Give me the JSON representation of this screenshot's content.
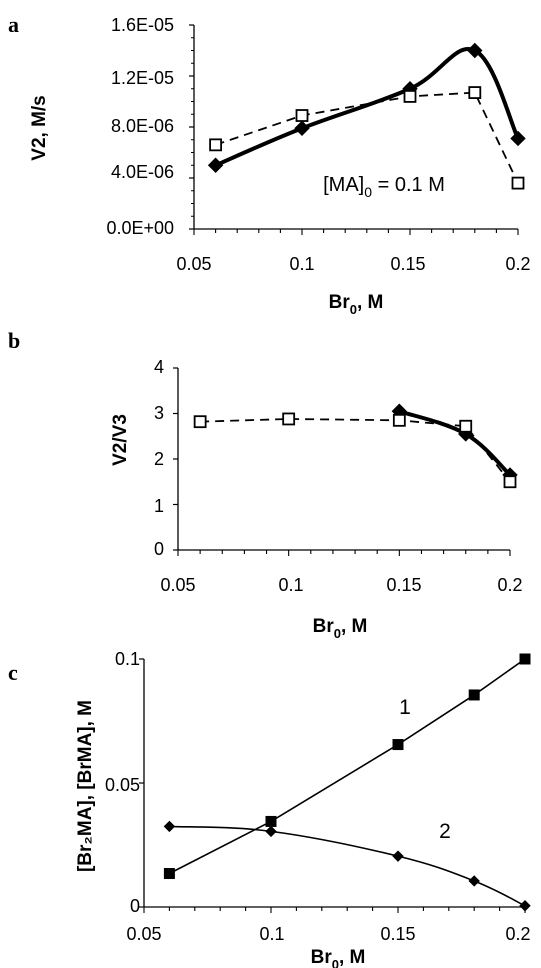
{
  "figure": {
    "panels": [
      {
        "letter": "a",
        "ylabel": "V2, M/s",
        "xlabel_main": "Br",
        "xlabel_sub": "0",
        "xlabel_tail": ", M",
        "annotation_main": "[MA]",
        "annotation_sub": "0",
        "annotation_tail": " = 0.1 M",
        "yticks": [
          "0.0E+00",
          "4.0E-06",
          "8.0E-06",
          "1.2E-05",
          "1.6E-05"
        ],
        "xticks": [
          "0.05",
          "0.1",
          "0.15",
          "0.2"
        ]
      },
      {
        "letter": "b",
        "ylabel": "V2/V3",
        "xlabel_main": "Br",
        "xlabel_sub": "0",
        "xlabel_tail": ", M",
        "yticks": [
          "0",
          "1",
          "2",
          "3",
          "4"
        ],
        "xticks": [
          "0.05",
          "0.1",
          "0.15",
          "0.2"
        ]
      },
      {
        "letter": "c",
        "ylabel": "[Br₂MA], [BrMA], M",
        "xlabel_main": "Br",
        "xlabel_sub": "0",
        "xlabel_tail": ", M",
        "curve_labels": [
          "1",
          "2"
        ],
        "yticks": [
          "0",
          "0.05",
          "0.1"
        ],
        "xticks": [
          "0.05",
          "0.1",
          "0.15",
          "0.2"
        ]
      }
    ]
  },
  "chart_data": [
    {
      "type": "line",
      "title": "",
      "xlabel": "Br0, M",
      "ylabel": "V2, M/s",
      "xlim": [
        0.05,
        0.2
      ],
      "ylim": [
        0,
        1.6e-05
      ],
      "grid": false,
      "annotations": [
        "[MA]0 = 0.1 M"
      ],
      "series": [
        {
          "style": "solid",
          "marker": "filled-diamond",
          "x": [
            0.06,
            0.1,
            0.15,
            0.18,
            0.2
          ],
          "y": [
            5e-06,
            7.9e-06,
            1.1e-05,
            1.4e-05,
            7.1e-06
          ]
        },
        {
          "style": "dashed",
          "marker": "open-square",
          "x": [
            0.06,
            0.1,
            0.15,
            0.18,
            0.2
          ],
          "y": [
            6.6e-06,
            8.9e-06,
            1.04e-05,
            1.07e-05,
            3.6e-06
          ]
        }
      ]
    },
    {
      "type": "line",
      "title": "",
      "xlabel": "Br0, M",
      "ylabel": "V2/V3",
      "xlim": [
        0.05,
        0.2
      ],
      "ylim": [
        0,
        4
      ],
      "grid": false,
      "series": [
        {
          "style": "solid",
          "marker": "filled-diamond",
          "x": [
            0.15,
            0.18,
            0.2
          ],
          "y": [
            3.05,
            2.55,
            1.65
          ]
        },
        {
          "style": "dashed",
          "marker": "open-square",
          "x": [
            0.06,
            0.1,
            0.15,
            0.18,
            0.2
          ],
          "y": [
            2.82,
            2.88,
            2.85,
            2.72,
            1.5
          ]
        }
      ]
    },
    {
      "type": "line",
      "title": "",
      "xlabel": "Br0, M",
      "ylabel": "[Br2MA], [BrMA], M",
      "xlim": [
        0.05,
        0.2
      ],
      "ylim": [
        0,
        0.1
      ],
      "grid": false,
      "series": [
        {
          "name": "1",
          "style": "solid-thin",
          "marker": "filled-square",
          "x": [
            0.06,
            0.1,
            0.15,
            0.18,
            0.2
          ],
          "y": [
            0.0135,
            0.0345,
            0.0655,
            0.0855,
            0.1
          ]
        },
        {
          "name": "2",
          "style": "solid-thin",
          "marker": "filled-diamond-small",
          "x": [
            0.06,
            0.1,
            0.15,
            0.18,
            0.2
          ],
          "y": [
            0.0325,
            0.0305,
            0.0205,
            0.0105,
            0.0005
          ]
        }
      ]
    }
  ]
}
